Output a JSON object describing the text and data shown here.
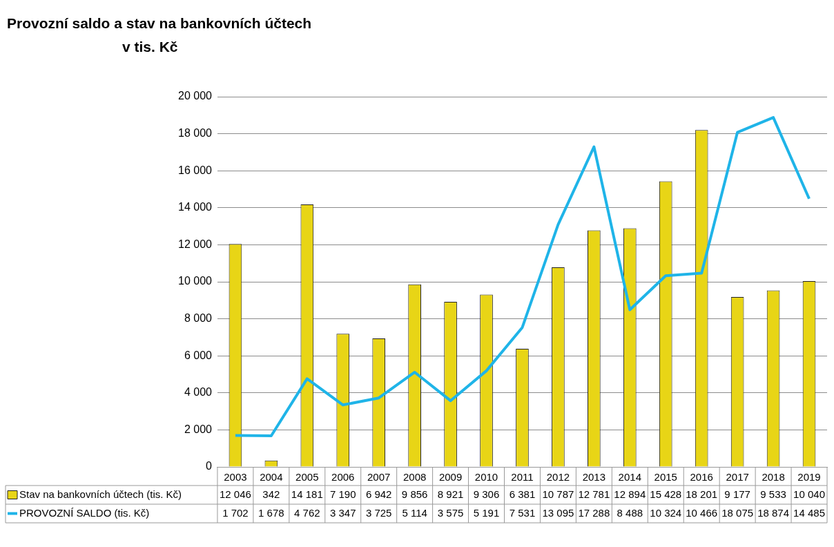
{
  "chart_data": {
    "type": "bar",
    "title": "Provozní saldo a stav na bankovních účtech",
    "subtitle": "v tis. Kč",
    "categories": [
      "2003",
      "2004",
      "2005",
      "2006",
      "2007",
      "2008",
      "2009",
      "2010",
      "2011",
      "2012",
      "2013",
      "2014",
      "2015",
      "2016",
      "2017",
      "2018",
      "2019"
    ],
    "series": [
      {
        "name": "Stav na bankovních účtech (tis. Kč)",
        "color": "#e8d516",
        "values": [
          12046,
          342,
          14181,
          7190,
          6942,
          9856,
          8921,
          9306,
          6381,
          10787,
          12781,
          12894,
          15428,
          18201,
          9177,
          9533,
          10040
        ],
        "value_labels": [
          "12 046",
          "342",
          "14 181",
          "7 190",
          "6 942",
          "9 856",
          "8 921",
          "9 306",
          "6 381",
          "10 787",
          "12 781",
          "12 894",
          "15 428",
          "18 201",
          "9 177",
          "9 533",
          "10 040"
        ]
      },
      {
        "type": "line",
        "name": "PROVOZNÍ SALDO (tis. Kč)",
        "color": "#1fb4e8",
        "values": [
          1702,
          1678,
          4762,
          3347,
          3725,
          5114,
          3575,
          5191,
          7531,
          13095,
          17288,
          8488,
          10324,
          10466,
          18075,
          18874,
          14485
        ],
        "value_labels": [
          "1 702",
          "1 678",
          "4 762",
          "3 347",
          "3 725",
          "5 114",
          "3 575",
          "5 191",
          "7 531",
          "13 095",
          "17 288",
          "8 488",
          "10 324",
          "10 466",
          "18 075",
          "18 874",
          "14 485"
        ]
      }
    ],
    "ylim": [
      0,
      20000
    ],
    "yticks": [
      {
        "value": 0,
        "label": "0"
      },
      {
        "value": 2000,
        "label": "2 000"
      },
      {
        "value": 4000,
        "label": "4 000"
      },
      {
        "value": 6000,
        "label": "6 000"
      },
      {
        "value": 8000,
        "label": "8 000"
      },
      {
        "value": 10000,
        "label": "10 000"
      },
      {
        "value": 12000,
        "label": "12 000"
      },
      {
        "value": 14000,
        "label": "14 000"
      },
      {
        "value": 16000,
        "label": "16 000"
      },
      {
        "value": 18000,
        "label": "18 000"
      },
      {
        "value": 20000,
        "label": "20 000"
      }
    ],
    "grid": "y",
    "legend": "bottom",
    "marker": "none"
  }
}
